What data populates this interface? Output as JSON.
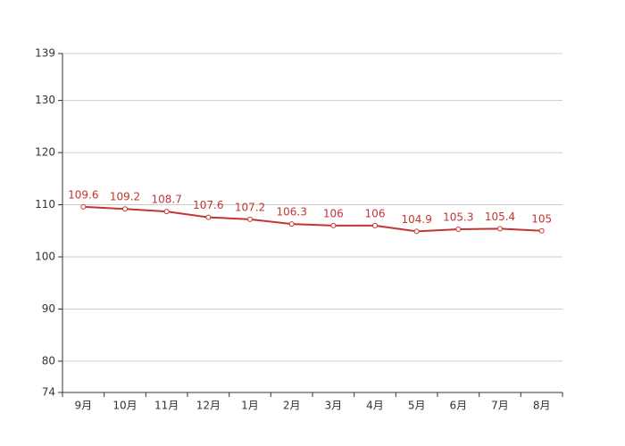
{
  "chart_data": {
    "type": "line",
    "categories": [
      "9月",
      "10月",
      "11月",
      "12月",
      "1月",
      "2月",
      "3月",
      "4月",
      "5月",
      "6月",
      "7月",
      "8月"
    ],
    "series": [
      {
        "color": "#c23531",
        "values": [
          109.6,
          109.2,
          108.7,
          107.6,
          107.2,
          106.3,
          106,
          106,
          104.9,
          105.3,
          105.4,
          105
        ]
      }
    ],
    "ylim": [
      74,
      139
    ],
    "yticks": [
      74,
      80,
      90,
      100,
      110,
      120,
      130,
      139
    ],
    "grid": true
  }
}
